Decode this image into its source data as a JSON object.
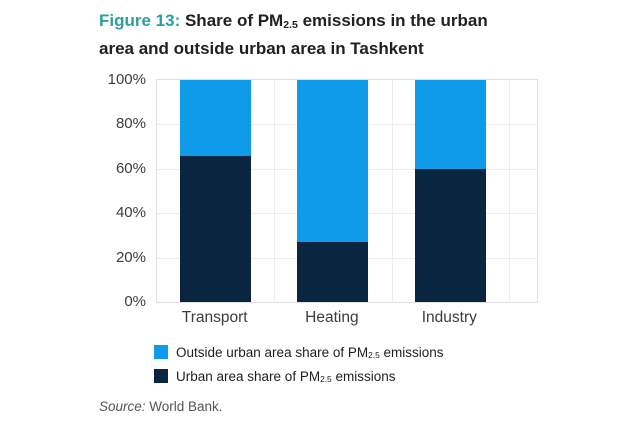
{
  "colors": {
    "teal": "#2f9e9e",
    "light_blue": "#0f9bea",
    "navy": "#0a2540",
    "grid": "#ececec",
    "axis_text": "#3d3d3d"
  },
  "title": {
    "figure_label": "Figure 13:",
    "line1_before_sub": " Share of PM",
    "sub": "2.5",
    "line1_after_sub": " emissions in the urban",
    "line2": "area and outside urban area in Tashkent"
  },
  "legend": {
    "items": [
      {
        "color": "#0f9bea",
        "before_sub": "Outside urban area share of PM",
        "sub": "2.5",
        "after_sub": " emissions"
      },
      {
        "color": "#0a2540",
        "before_sub": "Urban area share of PM",
        "sub": "2.5",
        "after_sub": " emissions"
      }
    ]
  },
  "source": {
    "label": "Source:",
    "text": " World Bank."
  },
  "chart_data": {
    "type": "bar",
    "stacked": true,
    "title": "Figure 13: Share of PM2.5 emissions in the urban area and outside urban area in Tashkent",
    "categories": [
      "Transport",
      "Heating",
      "Industry"
    ],
    "series": [
      {
        "name": "Urban area share of PM2.5 emissions",
        "color": "#0a2540",
        "values": [
          66,
          27,
          60
        ]
      },
      {
        "name": "Outside urban area share of PM2.5 emissions",
        "color": "#0f9bea",
        "values": [
          34,
          73,
          40
        ]
      }
    ],
    "xlabel": "",
    "ylabel": "",
    "ylim": [
      0,
      100
    ],
    "yticks": [
      0,
      20,
      40,
      60,
      80,
      100
    ],
    "ytick_labels": [
      "0%",
      "20%",
      "40%",
      "60%",
      "80%",
      "100%"
    ],
    "grid": true,
    "legend_position": "bottom"
  }
}
